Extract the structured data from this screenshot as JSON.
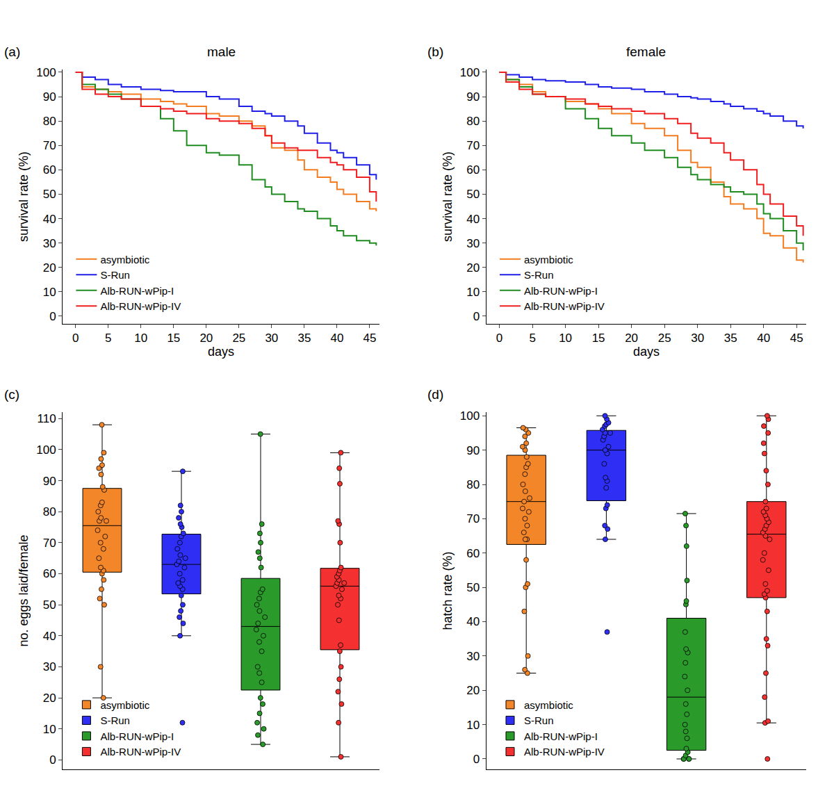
{
  "chart_data": [
    {
      "type": "line",
      "panel_label": "(a)",
      "title": "male",
      "x_label": "days",
      "y_label": "survival rate (%)",
      "line_style": "step",
      "legend": "lower left",
      "grid": false,
      "x": [
        0,
        1,
        3,
        5,
        7,
        10,
        13,
        15,
        17,
        20,
        22,
        25,
        27,
        29,
        30,
        32,
        34,
        35,
        37,
        39,
        40,
        41,
        43,
        45,
        46
      ],
      "xlim": [
        -2,
        46.5
      ],
      "xticks": [
        0,
        5,
        10,
        15,
        20,
        25,
        30,
        35,
        40,
        45
      ],
      "ylim": [
        -3,
        101
      ],
      "yticks": [
        0,
        10,
        20,
        30,
        40,
        50,
        60,
        70,
        80,
        90,
        100
      ],
      "series": [
        {
          "name": "asymbiotic",
          "color": "#f47c20",
          "values": [
            100,
            94,
            93,
            92,
            91,
            89,
            88,
            87,
            86,
            83,
            82,
            80,
            78,
            74,
            69,
            68,
            64,
            60,
            57,
            55,
            52,
            50,
            47,
            44,
            43
          ]
        },
        {
          "name": "S-Run",
          "color": "#1f1fe8",
          "values": [
            100,
            98,
            97,
            95,
            94,
            93,
            92.5,
            92,
            92,
            90,
            89,
            86,
            84,
            83,
            82,
            80,
            78,
            75,
            71,
            68,
            67,
            65,
            62,
            58,
            56
          ]
        },
        {
          "name": "Alb-RUN-wPip-I",
          "color": "#1e8c1e",
          "values": [
            100,
            95,
            93,
            91,
            89,
            86,
            81,
            76,
            70,
            67,
            66,
            62,
            56,
            53,
            50,
            47,
            44,
            43,
            40,
            37,
            35,
            33,
            31,
            30,
            29
          ]
        },
        {
          "name": "Alb-RUN-wPip-IV",
          "color": "#f01e1e",
          "values": [
            100,
            93,
            91,
            90,
            89,
            86,
            85,
            84,
            83,
            81,
            80,
            79,
            77,
            74,
            71,
            69,
            68,
            68,
            65,
            63,
            62,
            60,
            57,
            51,
            47
          ]
        }
      ]
    },
    {
      "type": "line",
      "panel_label": "(b)",
      "title": "female",
      "x_label": "days",
      "y_label": "survival rate (%)",
      "line_style": "step",
      "legend": "lower left",
      "grid": false,
      "x": [
        0,
        1,
        3,
        5,
        7,
        10,
        13,
        15,
        17,
        20,
        22,
        25,
        27,
        29,
        30,
        32,
        34,
        35,
        37,
        39,
        40,
        41,
        43,
        45,
        46
      ],
      "xlim": [
        -2,
        46.5
      ],
      "xticks": [
        0,
        5,
        10,
        15,
        20,
        25,
        30,
        35,
        40,
        45
      ],
      "ylim": [
        -3,
        101
      ],
      "yticks": [
        0,
        10,
        20,
        30,
        40,
        50,
        60,
        70,
        80,
        90,
        100
      ],
      "series": [
        {
          "name": "asymbiotic",
          "color": "#f47c20",
          "values": [
            100,
            97,
            95,
            92,
            90,
            88,
            87,
            85,
            83,
            79,
            77,
            74,
            68,
            63,
            61,
            55,
            49,
            46,
            44,
            40,
            34,
            33,
            28,
            23,
            22
          ]
        },
        {
          "name": "S-Run",
          "color": "#1f1fe8",
          "values": [
            100,
            99,
            98,
            97,
            96.5,
            96,
            95,
            94,
            93.5,
            93,
            92,
            91,
            90,
            89.5,
            89,
            88,
            87,
            86,
            85,
            84,
            83,
            82,
            80,
            78,
            77
          ]
        },
        {
          "name": "Alb-RUN-wPip-I",
          "color": "#1e8c1e",
          "values": [
            100,
            97,
            94,
            91,
            90,
            85,
            81,
            77,
            74,
            71,
            68,
            65,
            61,
            58,
            56,
            54,
            53,
            51,
            50,
            46,
            42,
            40,
            35,
            30,
            27
          ]
        },
        {
          "name": "Alb-RUN-wPip-IV",
          "color": "#f01e1e",
          "values": [
            100,
            96,
            93,
            91,
            90,
            89,
            87,
            86,
            85,
            84,
            83,
            81,
            79,
            75,
            73,
            71,
            67,
            64,
            60,
            54,
            50,
            46,
            41,
            37,
            33
          ]
        }
      ]
    },
    {
      "type": "box",
      "panel_label": "(c)",
      "y_label": "no. eggs laid/female",
      "legend": "lower left",
      "grid": false,
      "tick_labels": "y",
      "ylim": [
        -3,
        112
      ],
      "yticks": [
        0,
        10,
        20,
        30,
        40,
        50,
        60,
        70,
        80,
        90,
        100,
        110
      ],
      "series": [
        {
          "name": "asymbiotic",
          "color": "#f4862a",
          "values": [
            108,
            99,
            97,
            95,
            94,
            92,
            88,
            87,
            83,
            82,
            80,
            78,
            77,
            77,
            74,
            72,
            70,
            68,
            65,
            62,
            61,
            60,
            58,
            55,
            52,
            50,
            30,
            20
          ]
        },
        {
          "name": "S-Run",
          "color": "#2e2ef5",
          "values": [
            93,
            82,
            80,
            78,
            76,
            75,
            73,
            72,
            70,
            68,
            66,
            65,
            64,
            63,
            62,
            60,
            58,
            57,
            56,
            55,
            53,
            50,
            48,
            46,
            44,
            40,
            12
          ]
        },
        {
          "name": "Alb-RUN-wPip-I",
          "color": "#2a9a2a",
          "values": [
            105,
            76,
            73,
            70,
            67,
            65,
            62,
            55,
            54,
            52,
            50,
            48,
            46,
            44,
            42,
            40,
            38,
            35,
            30,
            28,
            25,
            20,
            18,
            15,
            12,
            10,
            8,
            5
          ]
        },
        {
          "name": "Alb-RUN-wPip-IV",
          "color": "#f53030",
          "values": [
            99,
            94,
            89,
            77,
            76,
            70,
            62,
            61,
            60,
            59,
            58,
            57,
            57,
            56,
            55,
            53,
            52,
            50,
            45,
            37,
            35,
            30,
            26,
            22,
            18,
            12,
            1
          ]
        }
      ]
    },
    {
      "type": "box",
      "panel_label": "(d)",
      "y_label": "hatch rate (%)",
      "legend": "lower left",
      "grid": false,
      "tick_labels": "y",
      "ylim": [
        -3,
        101
      ],
      "yticks": [
        0,
        10,
        20,
        30,
        40,
        50,
        60,
        70,
        80,
        90,
        100
      ],
      "series": [
        {
          "name": "asymbiotic",
          "color": "#f4862a",
          "values": [
            96.5,
            96,
            95,
            94,
            92,
            91,
            90,
            88,
            86,
            85,
            83,
            80,
            78,
            76,
            75,
            73,
            72,
            70,
            68,
            66,
            64,
            64,
            58,
            51,
            50,
            43,
            30,
            26,
            25
          ]
        },
        {
          "name": "S-Run",
          "color": "#2e2ef5",
          "values": [
            100,
            99,
            98,
            97.5,
            97,
            96,
            95,
            95,
            94,
            93,
            91,
            90,
            89,
            86,
            82,
            81,
            79,
            74,
            73,
            68,
            67,
            64,
            37
          ]
        },
        {
          "name": "Alb-RUN-wPip-I",
          "color": "#2a9a2a",
          "values": [
            71.5,
            68,
            62,
            52,
            46,
            45,
            37,
            32,
            31,
            28,
            24,
            20,
            16,
            13,
            10,
            8,
            6,
            3,
            2,
            1,
            0,
            0,
            0,
            0
          ]
        },
        {
          "name": "Alb-RUN-wPip-IV",
          "color": "#f53030",
          "values": [
            100,
            99,
            97,
            95,
            92,
            89,
            84,
            80,
            75,
            73,
            72,
            71,
            70,
            69,
            68,
            67,
            66,
            65,
            64,
            60,
            58,
            55,
            51,
            49,
            48,
            47,
            43,
            35,
            33,
            25,
            18,
            11,
            10.5,
            0
          ]
        }
      ]
    }
  ]
}
